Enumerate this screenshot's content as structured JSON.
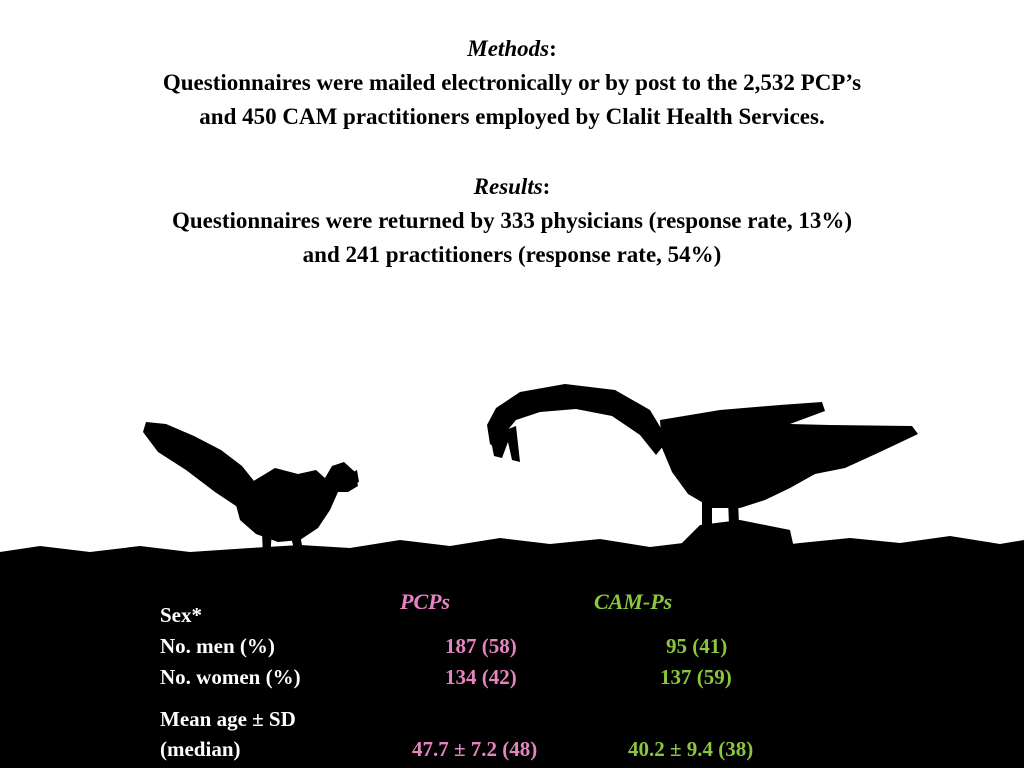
{
  "methods": {
    "heading": "Methods",
    "colon": ":",
    "line1": "Questionnaires were mailed electronically or by post to the 2,532 PCP’s",
    "line2": "and 450 CAM practitioners employed by Clalit Health Services."
  },
  "results": {
    "heading": "Results",
    "colon": ":",
    "line1": "Questionnaires were returned by 333 physicians (response rate, 13%)",
    "line2": "and 241 practitioners (response rate, 54%)"
  },
  "table": {
    "col_pcp": "PCPs",
    "col_cam": "CAM-Ps",
    "sex_label": "Sex*",
    "men_label": "No. men (%)",
    "women_label": "No. women  (%)",
    "age_label1": "Mean age ± SD",
    "age_label2": "(median)",
    "pcp_men": "187 (58)",
    "pcp_women": "134 (42)",
    "pcp_age": "47.7 ± 7.2 (48)",
    "cam_men": "95 (41)",
    "cam_women": "137 (59)",
    "cam_age": "40.2 ± 9.4 (38)"
  },
  "colors": {
    "pcp": "#e684c0",
    "cam": "#8cc63e",
    "label": "#ffffff",
    "background_lower": "#000000"
  }
}
